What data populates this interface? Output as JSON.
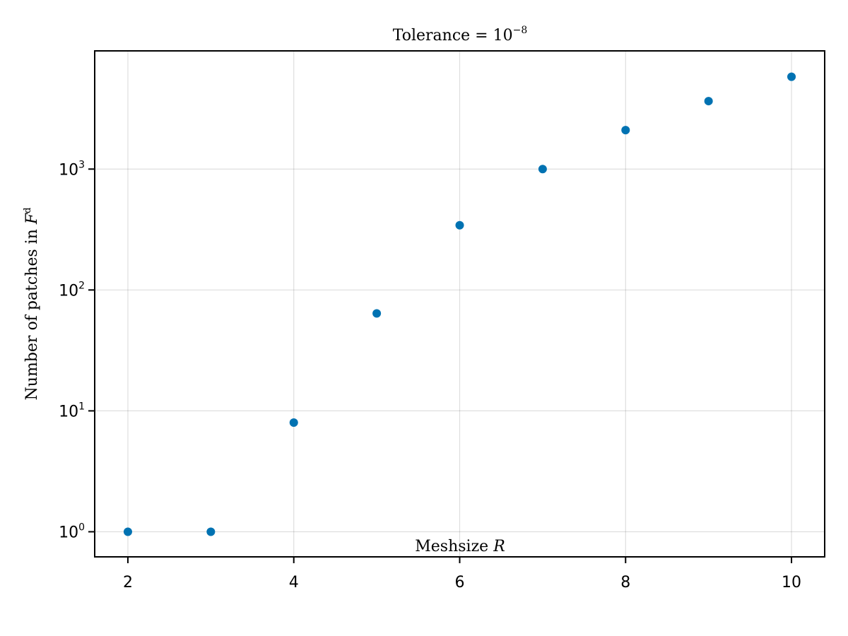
{
  "chart_data": {
    "type": "scatter",
    "title": {
      "text": "Tolerance = 10",
      "sup": "−8"
    },
    "xlabel": {
      "text": "Meshsize",
      "italic": "R"
    },
    "ylabel": {
      "text": "Number of patches in",
      "italic": "F",
      "sup": "d"
    },
    "x_scale": "linear",
    "y_scale": "log10",
    "xlim": [
      1.6,
      10.4
    ],
    "ylim": [
      0.62,
      9500
    ],
    "x_ticks": [
      2,
      4,
      6,
      8,
      10
    ],
    "y_ticks": [
      {
        "value": 1,
        "base": "10",
        "exp": "0"
      },
      {
        "value": 10,
        "base": "10",
        "exp": "1"
      },
      {
        "value": 100,
        "base": "10",
        "exp": "2"
      },
      {
        "value": 1000,
        "base": "10",
        "exp": "3"
      }
    ],
    "grid": true,
    "marker_color": "#0072b2",
    "series": [
      {
        "x": [
          2,
          3,
          4,
          5,
          6,
          7,
          8,
          9,
          10
        ],
        "y": [
          1,
          1,
          8,
          64,
          343,
          1000,
          2100,
          3650,
          5800
        ]
      }
    ]
  }
}
